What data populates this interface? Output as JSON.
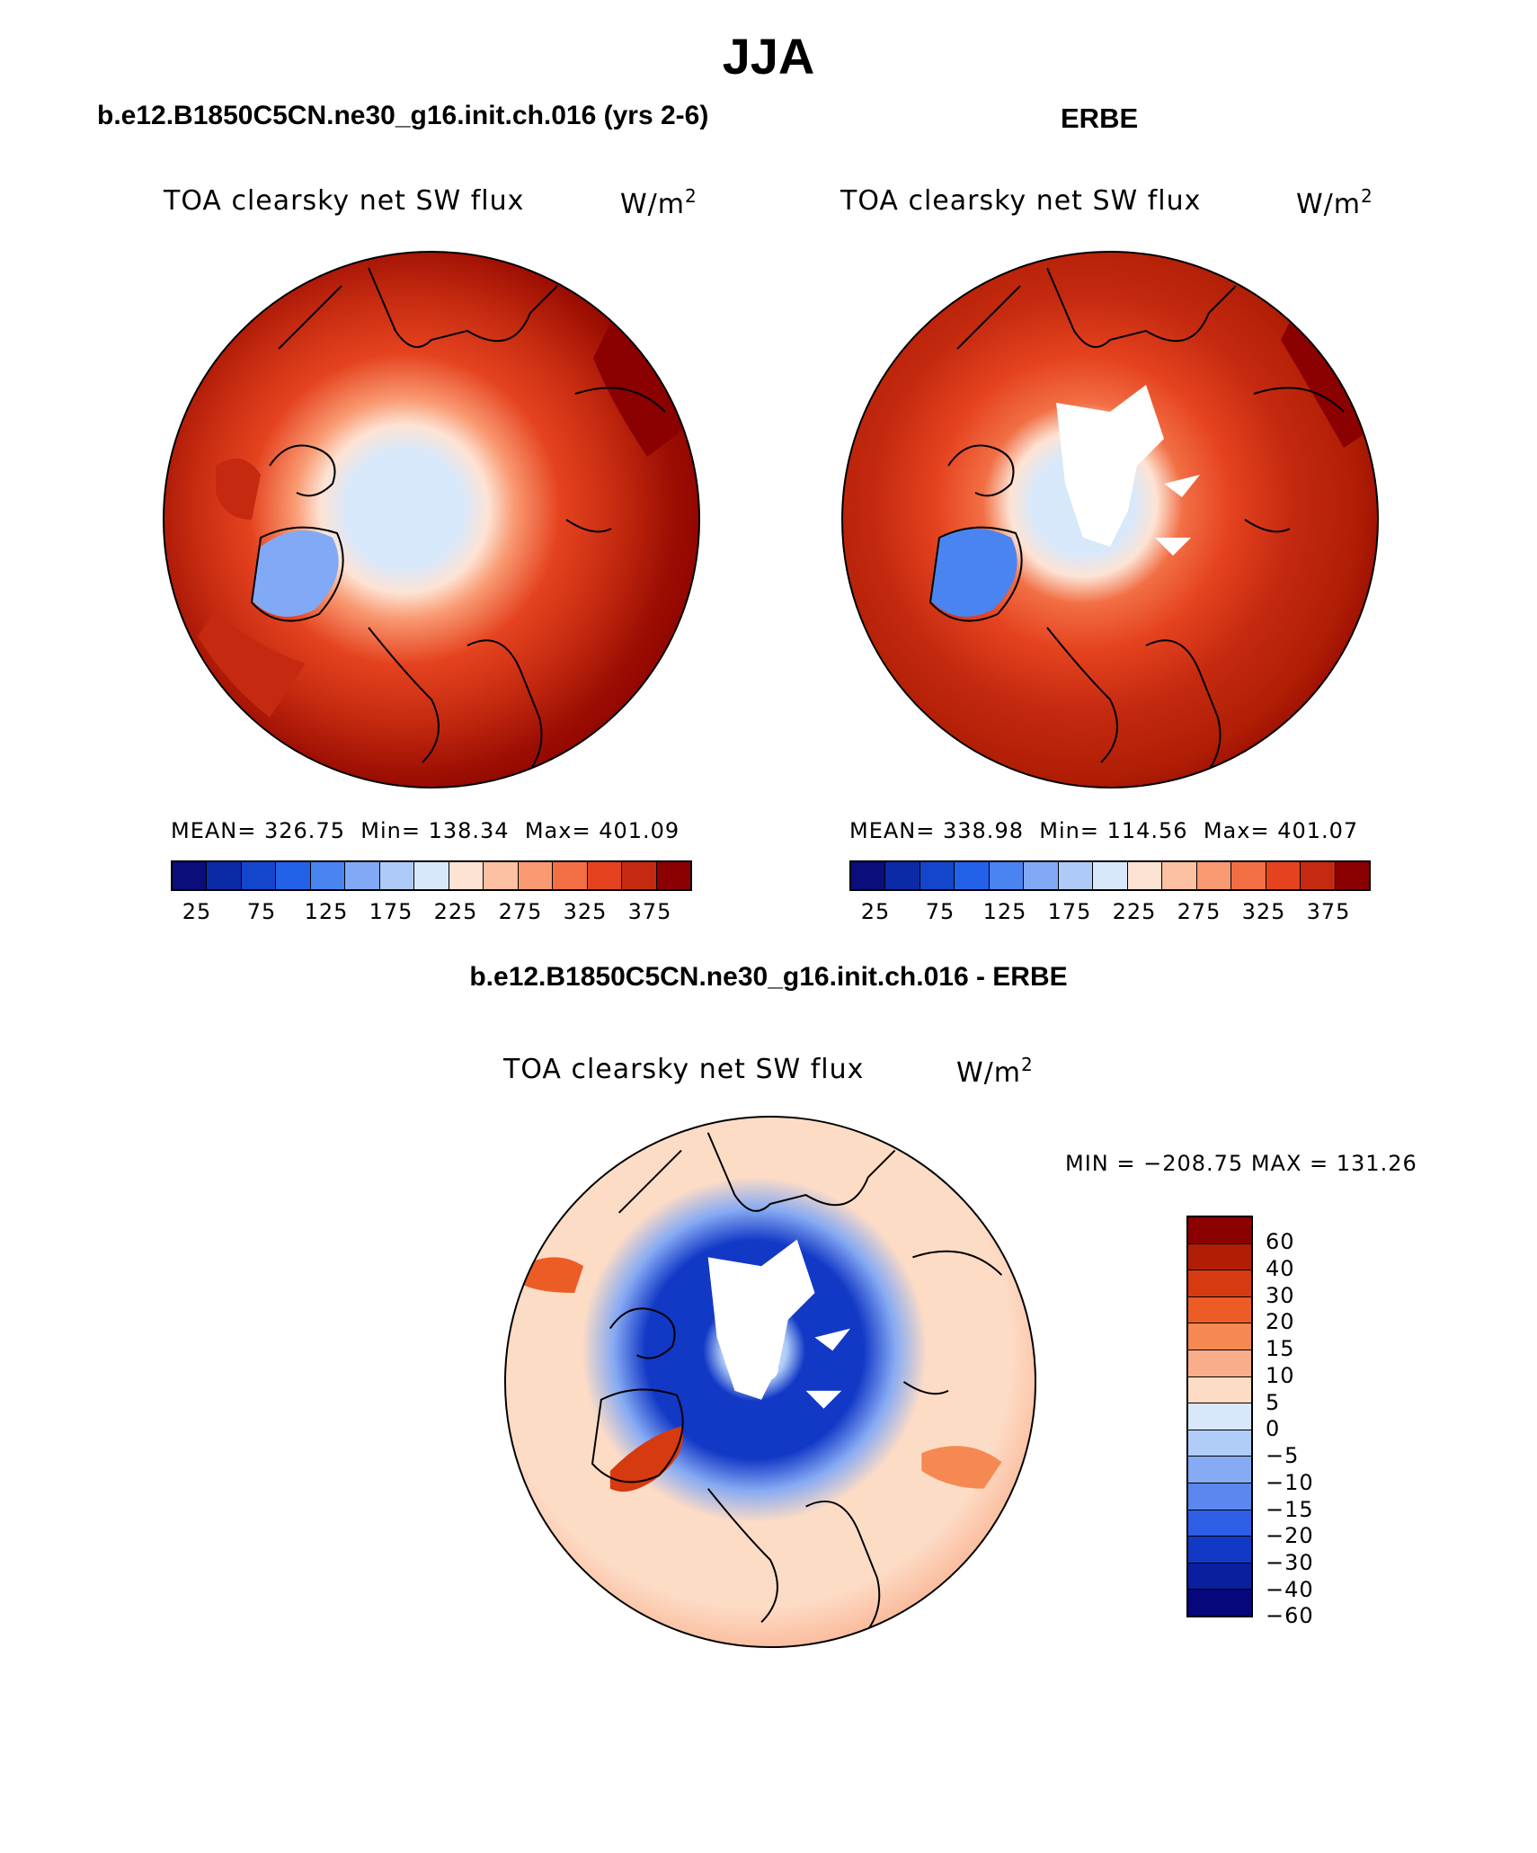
{
  "figure_title": "JJA",
  "colors": {
    "model_scale": [
      "#0a0d7a",
      "#0a2aa6",
      "#1446cc",
      "#2261e8",
      "#4a84f0",
      "#82a9f5",
      "#aecbf8",
      "#d8e8fb",
      "#fde3d3",
      "#fcc0a2",
      "#f99a72",
      "#f26f45",
      "#e5431f",
      "#c52a10",
      "#8b0000"
    ],
    "diff_scale": [
      "#8b0000",
      "#b01e05",
      "#d63a10",
      "#ec5d25",
      "#f68852",
      "#f9ad8a",
      "#fddcc6",
      "#d9e7fb",
      "#b0cdf8",
      "#86aaf3",
      "#5b87ee",
      "#2e5ee6",
      "#1238c6",
      "#0a1fa0",
      "#06077a"
    ],
    "land_outline": "#000000"
  },
  "panel_left": {
    "title": "b.e12.B1850C5CN.ne30_g16.init.ch.016 (yrs 2-6)",
    "variable": "TOA clearsky net SW flux",
    "units": "W/m",
    "units_sup": "2",
    "mean_label": "MEAN=",
    "mean": "326.75",
    "min_label": "Min=",
    "min": "138.34",
    "max_label": "Max=",
    "max": "401.09",
    "colorbar_ticks": [
      "25",
      "75",
      "125",
      "175",
      "225",
      "275",
      "325",
      "375"
    ]
  },
  "panel_right": {
    "title": "ERBE",
    "variable": "TOA clearsky net SW flux",
    "units": "W/m",
    "units_sup": "2",
    "mean_label": "MEAN=",
    "mean": "338.98",
    "min_label": "Min=",
    "min": "114.56",
    "max_label": "Max=",
    "max": "401.07",
    "colorbar_ticks": [
      "25",
      "75",
      "125",
      "175",
      "225",
      "275",
      "325",
      "375"
    ]
  },
  "panel_diff": {
    "title": "b.e12.B1850C5CN.ne30_g16.init.ch.016 - ERBE",
    "variable": "TOA clearsky net SW flux",
    "units": "W/m",
    "units_sup": "2",
    "minmax": "MIN = −208.75 MAX = 131.26",
    "colorbar_labels": [
      "60",
      "40",
      "30",
      "20",
      "15",
      "10",
      "5",
      "0",
      "−5",
      "−10",
      "−15",
      "−20",
      "−30",
      "−40",
      "−60"
    ]
  }
}
